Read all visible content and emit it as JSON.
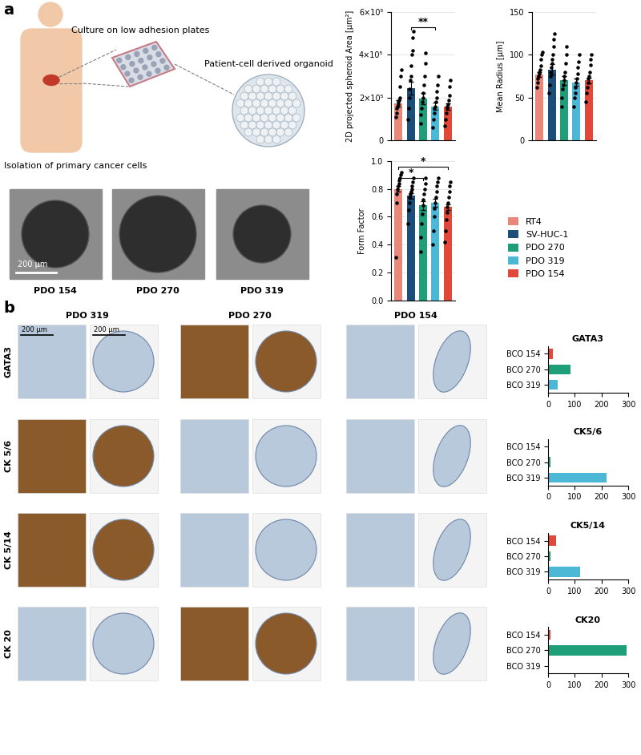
{
  "chart_data": [
    {
      "type": "bar",
      "ylabel": "2D projected spheroid Area [µm²]",
      "categories": [
        "RT4",
        "SV-HUC-1",
        "PDO 270",
        "PDO 319",
        "PDO 154"
      ],
      "colors": [
        "#e8877a",
        "#1b4e78",
        "#1f9e7a",
        "#4db8d6",
        "#e0483a"
      ],
      "values": [
        175000,
        245000,
        195000,
        160000,
        160000
      ],
      "errors": [
        15000,
        30000,
        25000,
        18000,
        15000
      ],
      "points": [
        [
          110000,
          130000,
          150000,
          160000,
          170000,
          180000,
          190000,
          200000,
          250000,
          300000,
          330000
        ],
        [
          100000,
          150000,
          200000,
          240000,
          280000,
          300000,
          350000,
          400000,
          420000,
          480000,
          510000
        ],
        [
          80000,
          120000,
          150000,
          180000,
          200000,
          220000,
          260000,
          300000,
          360000,
          410000
        ],
        [
          60000,
          100000,
          130000,
          150000,
          160000,
          180000,
          200000,
          230000,
          260000,
          300000
        ],
        [
          70000,
          100000,
          130000,
          150000,
          160000,
          170000,
          190000,
          210000,
          250000,
          280000
        ]
      ],
      "ylim": [
        0,
        600000
      ],
      "yticks": [
        0,
        {
          "value": 200000,
          "label": "2×10⁵"
        },
        {
          "value": 400000,
          "label": "4×10⁵"
        },
        {
          "value": 600000,
          "label": "6×10⁵"
        }
      ],
      "grid": true,
      "tick_labels": "y",
      "legend": "center left",
      "significance": [
        {
          "from": "SV-HUC-1",
          "to": "PDO 319",
          "label": "**"
        }
      ]
    },
    {
      "type": "bar",
      "ylabel": "Mean Radius [µm]",
      "categories": [
        "RT4",
        "SV-HUC-1",
        "PDO 270",
        "PDO 319",
        "PDO 154"
      ],
      "colors": [
        "#e8877a",
        "#1b4e78",
        "#1f9e7a",
        "#4db8d6",
        "#e0483a"
      ],
      "values": [
        77,
        83,
        70,
        68,
        70
      ],
      "errors": [
        3,
        6,
        5,
        4,
        3
      ],
      "points": [
        [
          62,
          68,
          72,
          75,
          78,
          80,
          83,
          87,
          95,
          100,
          103
        ],
        [
          55,
          65,
          75,
          80,
          85,
          90,
          95,
          100,
          110,
          118,
          125
        ],
        [
          40,
          50,
          60,
          65,
          70,
          75,
          80,
          90,
          100,
          110
        ],
        [
          40,
          50,
          55,
          62,
          68,
          72,
          78,
          85,
          92,
          100
        ],
        [
          45,
          55,
          62,
          68,
          72,
          75,
          80,
          88,
          95,
          100
        ]
      ],
      "ylim": [
        0,
        150
      ],
      "yticks": [
        0,
        50,
        100,
        150
      ],
      "grid": true,
      "tick_labels": "y",
      "significance": []
    },
    {
      "type": "bar",
      "ylabel": "Form Factor",
      "categories": [
        "RT4",
        "SV-HUC-1",
        "PDO 270",
        "PDO 319",
        "PDO 154"
      ],
      "colors": [
        "#e8877a",
        "#1b4e78",
        "#1f9e7a",
        "#4db8d6",
        "#e0483a"
      ],
      "values": [
        0.8,
        0.75,
        0.68,
        0.7,
        0.67
      ],
      "errors": [
        0.02,
        0.02,
        0.03,
        0.03,
        0.02
      ],
      "points": [
        [
          0.31,
          0.7,
          0.76,
          0.8,
          0.82,
          0.84,
          0.86,
          0.88,
          0.9,
          0.92
        ],
        [
          0.55,
          0.65,
          0.7,
          0.74,
          0.76,
          0.78,
          0.8,
          0.82,
          0.85,
          0.88
        ],
        [
          0.35,
          0.45,
          0.55,
          0.62,
          0.68,
          0.72,
          0.76,
          0.8,
          0.84,
          0.88
        ],
        [
          0.4,
          0.5,
          0.6,
          0.66,
          0.7,
          0.74,
          0.78,
          0.82,
          0.85,
          0.88
        ],
        [
          0.42,
          0.5,
          0.58,
          0.63,
          0.67,
          0.7,
          0.74,
          0.78,
          0.82,
          0.85
        ]
      ],
      "ylim": [
        0.0,
        1.0
      ],
      "yticks": [
        0.0,
        0.2,
        0.4,
        0.6,
        0.8,
        1.0
      ],
      "grid": true,
      "tick_labels": "y",
      "significance": [
        {
          "from": "RT4",
          "to": "PDO 270",
          "label": "*"
        },
        {
          "from": "RT4",
          "to": "PDO 154",
          "label": "*"
        }
      ]
    },
    {
      "type": "bar",
      "orientation": "horizontal",
      "title": "GATA3",
      "categories": [
        "BCO 154",
        "BCO 270",
        "BCO 319"
      ],
      "values": [
        18,
        85,
        35
      ],
      "colors": [
        "#e0483a",
        "#1f9e7a",
        "#4db8d6"
      ],
      "xlim": [
        0,
        300
      ],
      "xticks": [
        0,
        100,
        200,
        300
      ]
    },
    {
      "type": "bar",
      "orientation": "horizontal",
      "title": "CK5/6",
      "categories": [
        "BCO 154",
        "BCO 270",
        "BCO 319"
      ],
      "values": [
        0,
        8,
        220
      ],
      "colors": [
        "#e0483a",
        "#1f9e7a",
        "#4db8d6"
      ],
      "xlim": [
        0,
        300
      ],
      "xticks": [
        0,
        100,
        200,
        300
      ]
    },
    {
      "type": "bar",
      "orientation": "horizontal",
      "title": "CK5/14",
      "categories": [
        "BCO 154",
        "BCO 270",
        "BCO 319"
      ],
      "values": [
        30,
        8,
        120
      ],
      "colors": [
        "#e0483a",
        "#1f9e7a",
        "#4db8d6"
      ],
      "xlim": [
        0,
        300
      ],
      "xticks": [
        0,
        100,
        200,
        300
      ]
    },
    {
      "type": "bar",
      "orientation": "horizontal",
      "title": "CK20",
      "categories": [
        "BCO 154",
        "BCO 270",
        "BCO 319"
      ],
      "values": [
        10,
        295,
        0
      ],
      "colors": [
        "#e0483a",
        "#1f9e7a",
        "#4db8d6"
      ],
      "xlim": [
        0,
        300
      ],
      "xticks": [
        0,
        100,
        200,
        300
      ]
    }
  ],
  "figure": {
    "panel_labels": [
      "a",
      "b"
    ],
    "schematic": [
      "Isolation of primary cancer cells",
      "Culture on low adhesion plates",
      "Patient-cell derived organoid"
    ],
    "organoid_images": {
      "labels": [
        "PDO 154",
        "PDO 270",
        "PDO 319"
      ],
      "scale_bar": "200 µm"
    },
    "ihc": {
      "columns": [
        "PDO 319",
        "PDO 270",
        "PDO 154"
      ],
      "rows": [
        "GATA3",
        "CK 5/6",
        "CK 5/14",
        "CK 20"
      ],
      "scale_bar": "200 µm"
    }
  }
}
